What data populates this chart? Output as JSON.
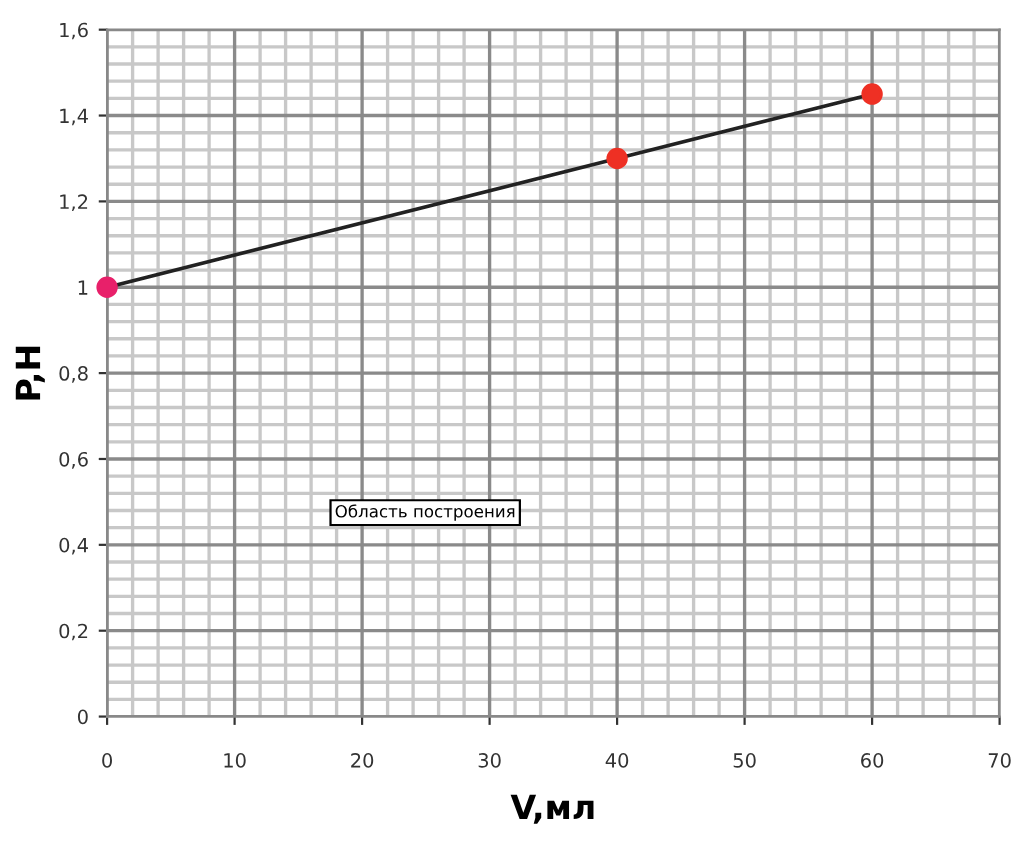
{
  "chart_data": {
    "type": "line",
    "xlabel": "V,мл",
    "ylabel": "P,Н",
    "x": [
      0,
      40,
      60
    ],
    "series": [
      {
        "color": "#222222",
        "colors": [
          "#e8206a",
          "#ee3024",
          "#ee3024"
        ],
        "values": [
          1,
          1.3,
          1.45
        ]
      }
    ],
    "marker": "circle",
    "line_style": "solid",
    "xlim": [
      0,
      70
    ],
    "xticks": [
      0,
      10,
      20,
      30,
      40,
      50,
      60,
      70
    ],
    "ylim": [
      0,
      1.6
    ],
    "yticks": [
      0,
      {
        "value": 0.2,
        "label": "0,2"
      },
      {
        "value": 0.4,
        "label": "0,4"
      },
      {
        "value": 0.6,
        "label": "0,6"
      },
      {
        "value": 0.8,
        "label": "0,8"
      },
      1,
      {
        "value": 1.2,
        "label": "1,2"
      },
      {
        "value": 1.4,
        "label": "1,4"
      },
      {
        "value": 1.6,
        "label": "1,6"
      }
    ],
    "grid": true,
    "legend": false,
    "annotations": [
      "Область построения"
    ]
  }
}
